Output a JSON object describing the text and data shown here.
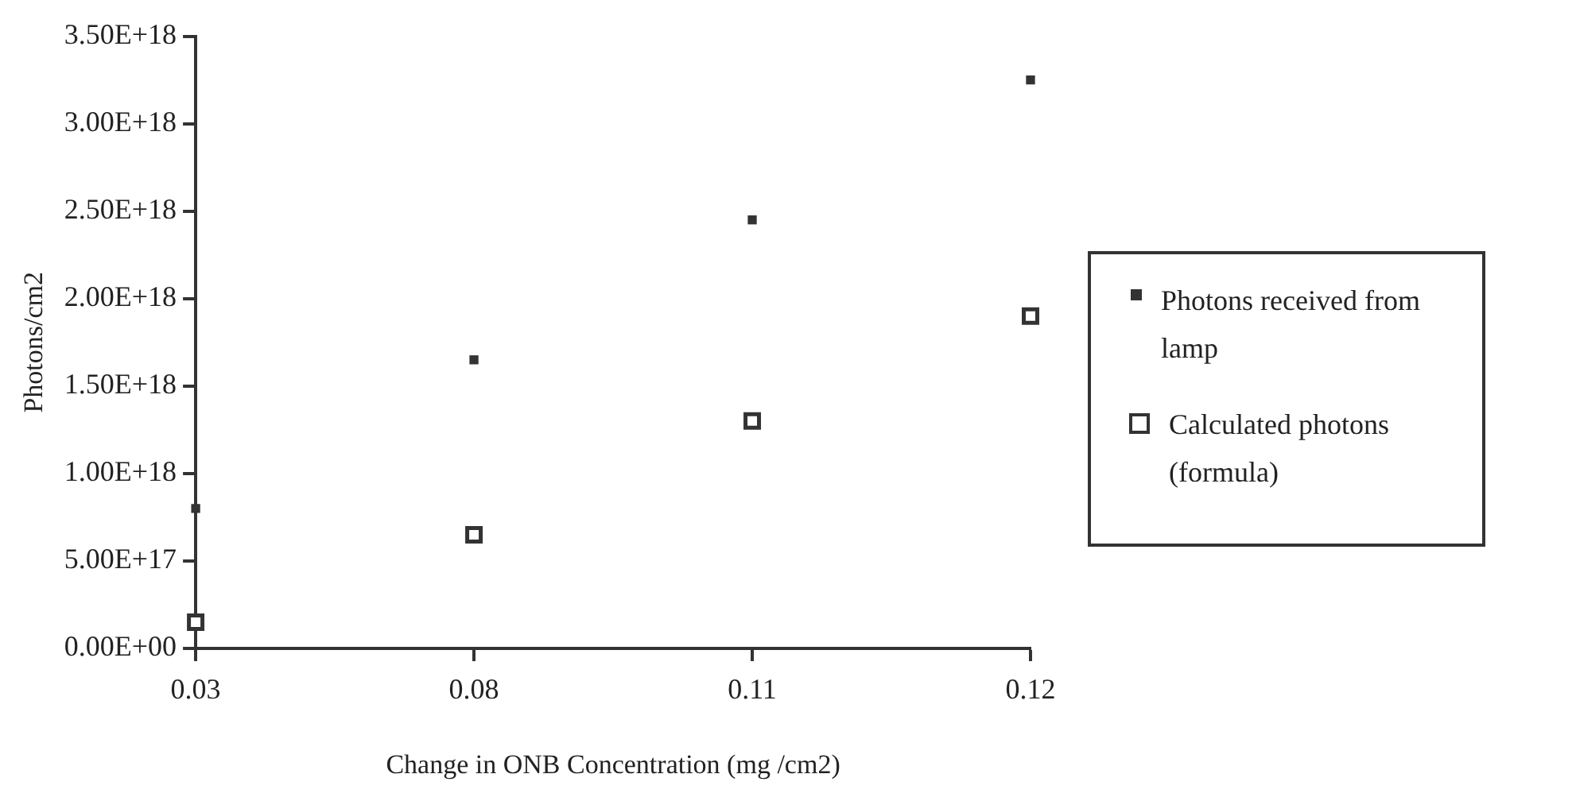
{
  "chart_data": {
    "type": "scatter",
    "xlabel": "Change in ONB Concentration (mg /cm2)",
    "ylabel": "Photons/cm2",
    "categories": [
      "0.03",
      "0.08",
      "0.11",
      "0.12"
    ],
    "series": [
      {
        "name": "Photons received from lamp",
        "color": "#333333",
        "values": [
          8e+17,
          1.65e+18,
          2.45e+18,
          3.25e+18
        ]
      },
      {
        "name": "Calculated photons (formula)",
        "color": "#333333",
        "values": [
          1.5e+17,
          6.5e+17,
          1.3e+18,
          1.9e+18
        ]
      }
    ],
    "ylim": [
      0,
      3.5e+18
    ],
    "yticks": [
      {
        "value": 0,
        "label": "0.00E+00"
      },
      {
        "value": 5e+17,
        "label": "5.00E+17"
      },
      {
        "value": 1e+18,
        "label": "1.00E+18"
      },
      {
        "value": 1.5e+18,
        "label": "1.50E+18"
      },
      {
        "value": 2e+18,
        "label": "2.00E+18"
      },
      {
        "value": 2.5e+18,
        "label": "2.50E+18"
      },
      {
        "value": 3e+18,
        "label": "3.00E+18"
      },
      {
        "value": 3.5e+18,
        "label": "3.50E+18"
      }
    ],
    "grid": false,
    "legend": "right",
    "marker": "square"
  }
}
